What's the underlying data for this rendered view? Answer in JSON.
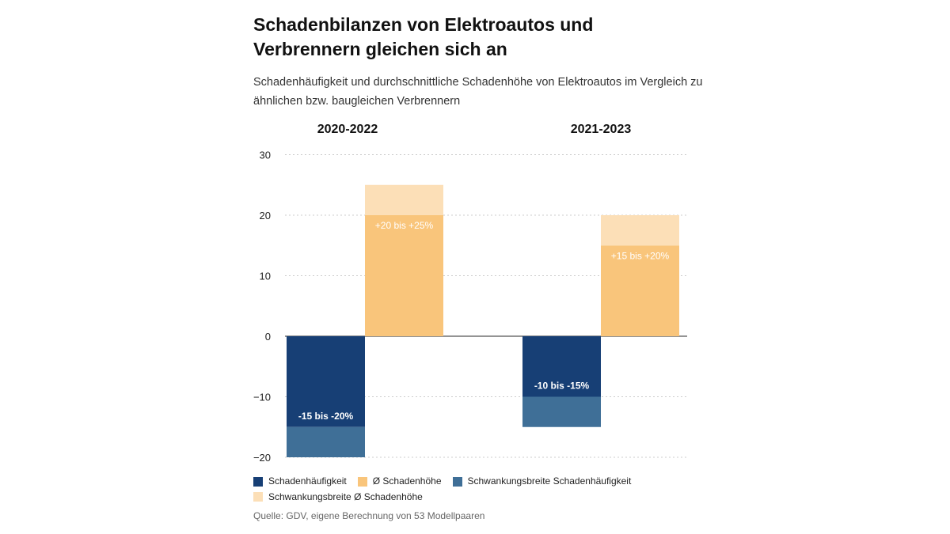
{
  "title": "Schadenbilanzen von Elektroautos und Verbrennern gleichen sich an",
  "subtitle": "Schadenhäufigkeit und durchschnittliche Schadenhöhe von Elektroautos im Vergleich zu ähnlichen bzw. baugleichen Verbrennern",
  "source": "Quelle: GDV, eigene Berechnung von 53 Modellpaaren",
  "colors": {
    "frequency": "#173f75",
    "severity": "#f9c57b",
    "frequency_range": "#3f6f97",
    "severity_range": "#fcdfb7",
    "grid": "#cccccc",
    "axis": "#555555"
  },
  "legend": [
    {
      "label": "Schadenhäufigkeit",
      "color": "#173f75"
    },
    {
      "label": "Ø Schadenhöhe",
      "color": "#f9c57b"
    },
    {
      "label": "Schwankungsbreite Schadenhäufigkeit",
      "color": "#3f6f97"
    },
    {
      "label": "Schwankungsbreite Ø Schadenhöhe",
      "color": "#fcdfb7"
    }
  ],
  "chart_data": {
    "type": "bar",
    "categories": [
      "2020-2022",
      "2021-2023"
    ],
    "y_ticks": [
      "30",
      "20",
      "10",
      "0",
      "−10",
      "−20"
    ],
    "ylim": [
      -20,
      30
    ],
    "grid": true,
    "legend_position": "bottom",
    "series": [
      {
        "name": "Schadenhäufigkeit",
        "ranges": [
          [
            -15,
            -20
          ],
          [
            -10,
            -15
          ]
        ],
        "labels": [
          "-15 bis -20%",
          "-10 bis -15%"
        ]
      },
      {
        "name": "Ø Schadenhöhe",
        "ranges": [
          [
            20,
            25
          ],
          [
            15,
            20
          ]
        ],
        "labels": [
          "+20 bis +25%",
          "+15 bis +20%"
        ]
      }
    ]
  }
}
